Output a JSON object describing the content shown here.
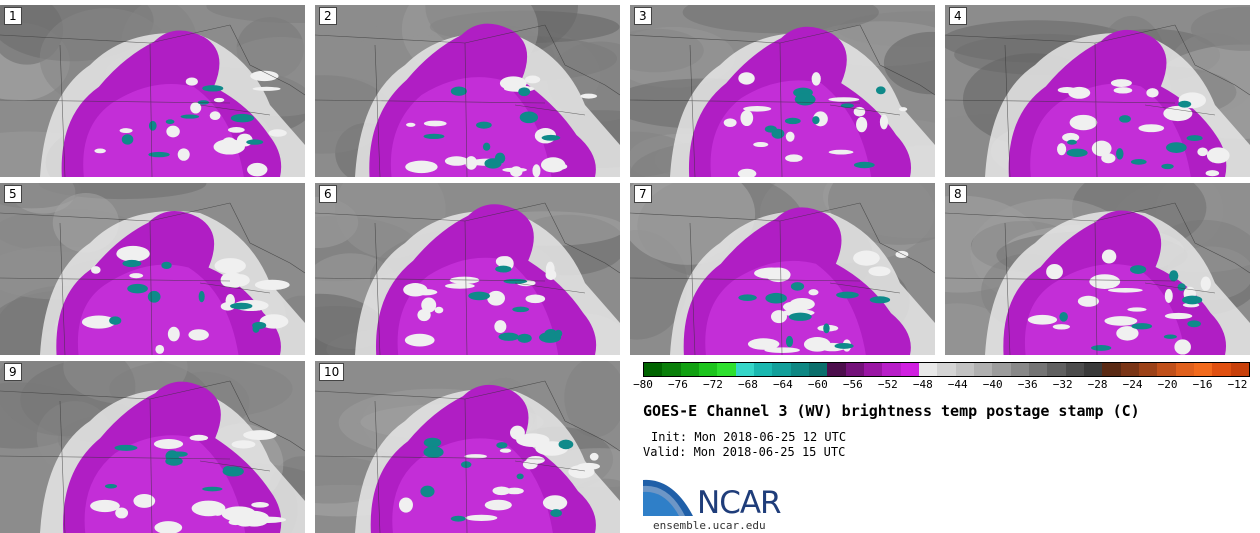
{
  "panels": [
    {
      "label": "1"
    },
    {
      "label": "2"
    },
    {
      "label": "3"
    },
    {
      "label": "4"
    },
    {
      "label": "5"
    },
    {
      "label": "6"
    },
    {
      "label": "7"
    },
    {
      "label": "8"
    },
    {
      "label": "9"
    },
    {
      "label": "10"
    }
  ],
  "colorbar": {
    "ticks": [
      "−80",
      "−76",
      "−72",
      "−68",
      "−64",
      "−60",
      "−56",
      "−52",
      "−48",
      "−44",
      "−40",
      "−36",
      "−32",
      "−28",
      "−24",
      "−20",
      "−16",
      "−12"
    ],
    "colors": [
      "#006400",
      "#0a7f0a",
      "#11a011",
      "#1cc41c",
      "#2ee02e",
      "#35d6c8",
      "#1ab8b0",
      "#129f9a",
      "#0e8783",
      "#0b6f6c",
      "#4d0f4d",
      "#74127a",
      "#9a16a4",
      "#b81ec8",
      "#d020e0",
      "#e8e8e8",
      "#d4d4d4",
      "#c2c2c2",
      "#b0b0b0",
      "#9c9c9c",
      "#888888",
      "#747474",
      "#606060",
      "#4c4c4c",
      "#3a3a3a",
      "#5a2a14",
      "#7a3516",
      "#9c4218",
      "#c0501a",
      "#e0601c",
      "#f26a1c",
      "#e05010",
      "#c8400a"
    ]
  },
  "title": "GOES-E Channel 3 (WV) brightness temp postage stamp (C)",
  "init": "Init: Mon 2018-06-25 12 UTC",
  "valid": "Valid: Mon 2018-06-25 15 UTC",
  "logo_text": "NCAR",
  "site": "ensemble.ucar.edu"
}
